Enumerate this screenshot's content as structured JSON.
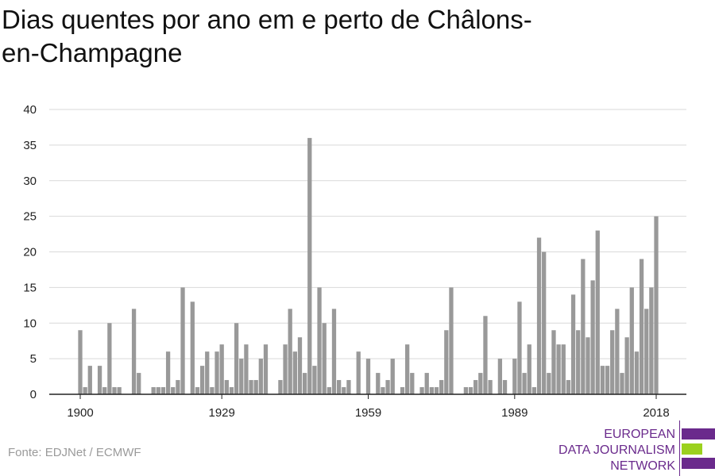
{
  "header": {
    "title": "Dias quentes por ano em e perto de Châlons-en-Champagne"
  },
  "footer": {
    "source": "Fonte: EDJNet / ECMWF"
  },
  "logo": {
    "lines": [
      "EUROPEAN",
      "DATA JOURNALISM",
      "NETWORK"
    ],
    "colors": {
      "purple": "#6a2a8c",
      "green": "#9bd11e"
    }
  },
  "chart_data": {
    "type": "bar",
    "title": "Dias quentes por ano em e perto de Châlons-en-Champagne",
    "xlabel": "",
    "ylabel": "",
    "bar_color": "#999999",
    "grid": true,
    "ylim": [
      0,
      40
    ],
    "y_ticks": [
      0,
      5,
      10,
      15,
      20,
      25,
      30,
      35,
      40
    ],
    "x_ticks": [
      1900,
      1929,
      1959,
      1989,
      2018
    ],
    "x": [
      1900,
      1901,
      1902,
      1903,
      1904,
      1905,
      1906,
      1907,
      1908,
      1909,
      1910,
      1911,
      1912,
      1913,
      1914,
      1915,
      1916,
      1917,
      1918,
      1919,
      1920,
      1921,
      1922,
      1923,
      1924,
      1925,
      1926,
      1927,
      1928,
      1929,
      1930,
      1931,
      1932,
      1933,
      1934,
      1935,
      1936,
      1937,
      1938,
      1939,
      1940,
      1941,
      1942,
      1943,
      1944,
      1945,
      1946,
      1947,
      1948,
      1949,
      1950,
      1951,
      1952,
      1953,
      1954,
      1955,
      1956,
      1957,
      1958,
      1959,
      1960,
      1961,
      1962,
      1963,
      1964,
      1965,
      1966,
      1967,
      1968,
      1969,
      1970,
      1971,
      1972,
      1973,
      1974,
      1975,
      1976,
      1977,
      1978,
      1979,
      1980,
      1981,
      1982,
      1983,
      1984,
      1985,
      1986,
      1987,
      1988,
      1989,
      1990,
      1991,
      1992,
      1993,
      1994,
      1995,
      1996,
      1997,
      1998,
      1999,
      2000,
      2001,
      2002,
      2003,
      2004,
      2005,
      2006,
      2007,
      2008,
      2009,
      2010,
      2011,
      2012,
      2013,
      2014,
      2015,
      2016,
      2017,
      2018
    ],
    "values": [
      9,
      1,
      4,
      0,
      4,
      1,
      10,
      1,
      1,
      0,
      0,
      12,
      3,
      0,
      0,
      1,
      1,
      1,
      6,
      1,
      2,
      15,
      0,
      13,
      1,
      4,
      6,
      1,
      6,
      7,
      2,
      1,
      10,
      5,
      7,
      2,
      2,
      5,
      7,
      0,
      0,
      2,
      7,
      12,
      6,
      8,
      3,
      36,
      4,
      15,
      10,
      1,
      12,
      2,
      1,
      2,
      0,
      6,
      0,
      5,
      0,
      3,
      1,
      2,
      5,
      0,
      1,
      7,
      3,
      0,
      1,
      3,
      1,
      1,
      2,
      9,
      15,
      0,
      0,
      1,
      1,
      2,
      3,
      11,
      2,
      0,
      5,
      2,
      0,
      5,
      13,
      3,
      7,
      1,
      22,
      20,
      3,
      9,
      7,
      7,
      2,
      14,
      9,
      19,
      8,
      16,
      23,
      4,
      4,
      9,
      12,
      3,
      8,
      15,
      6,
      19,
      12,
      15,
      25
    ]
  }
}
